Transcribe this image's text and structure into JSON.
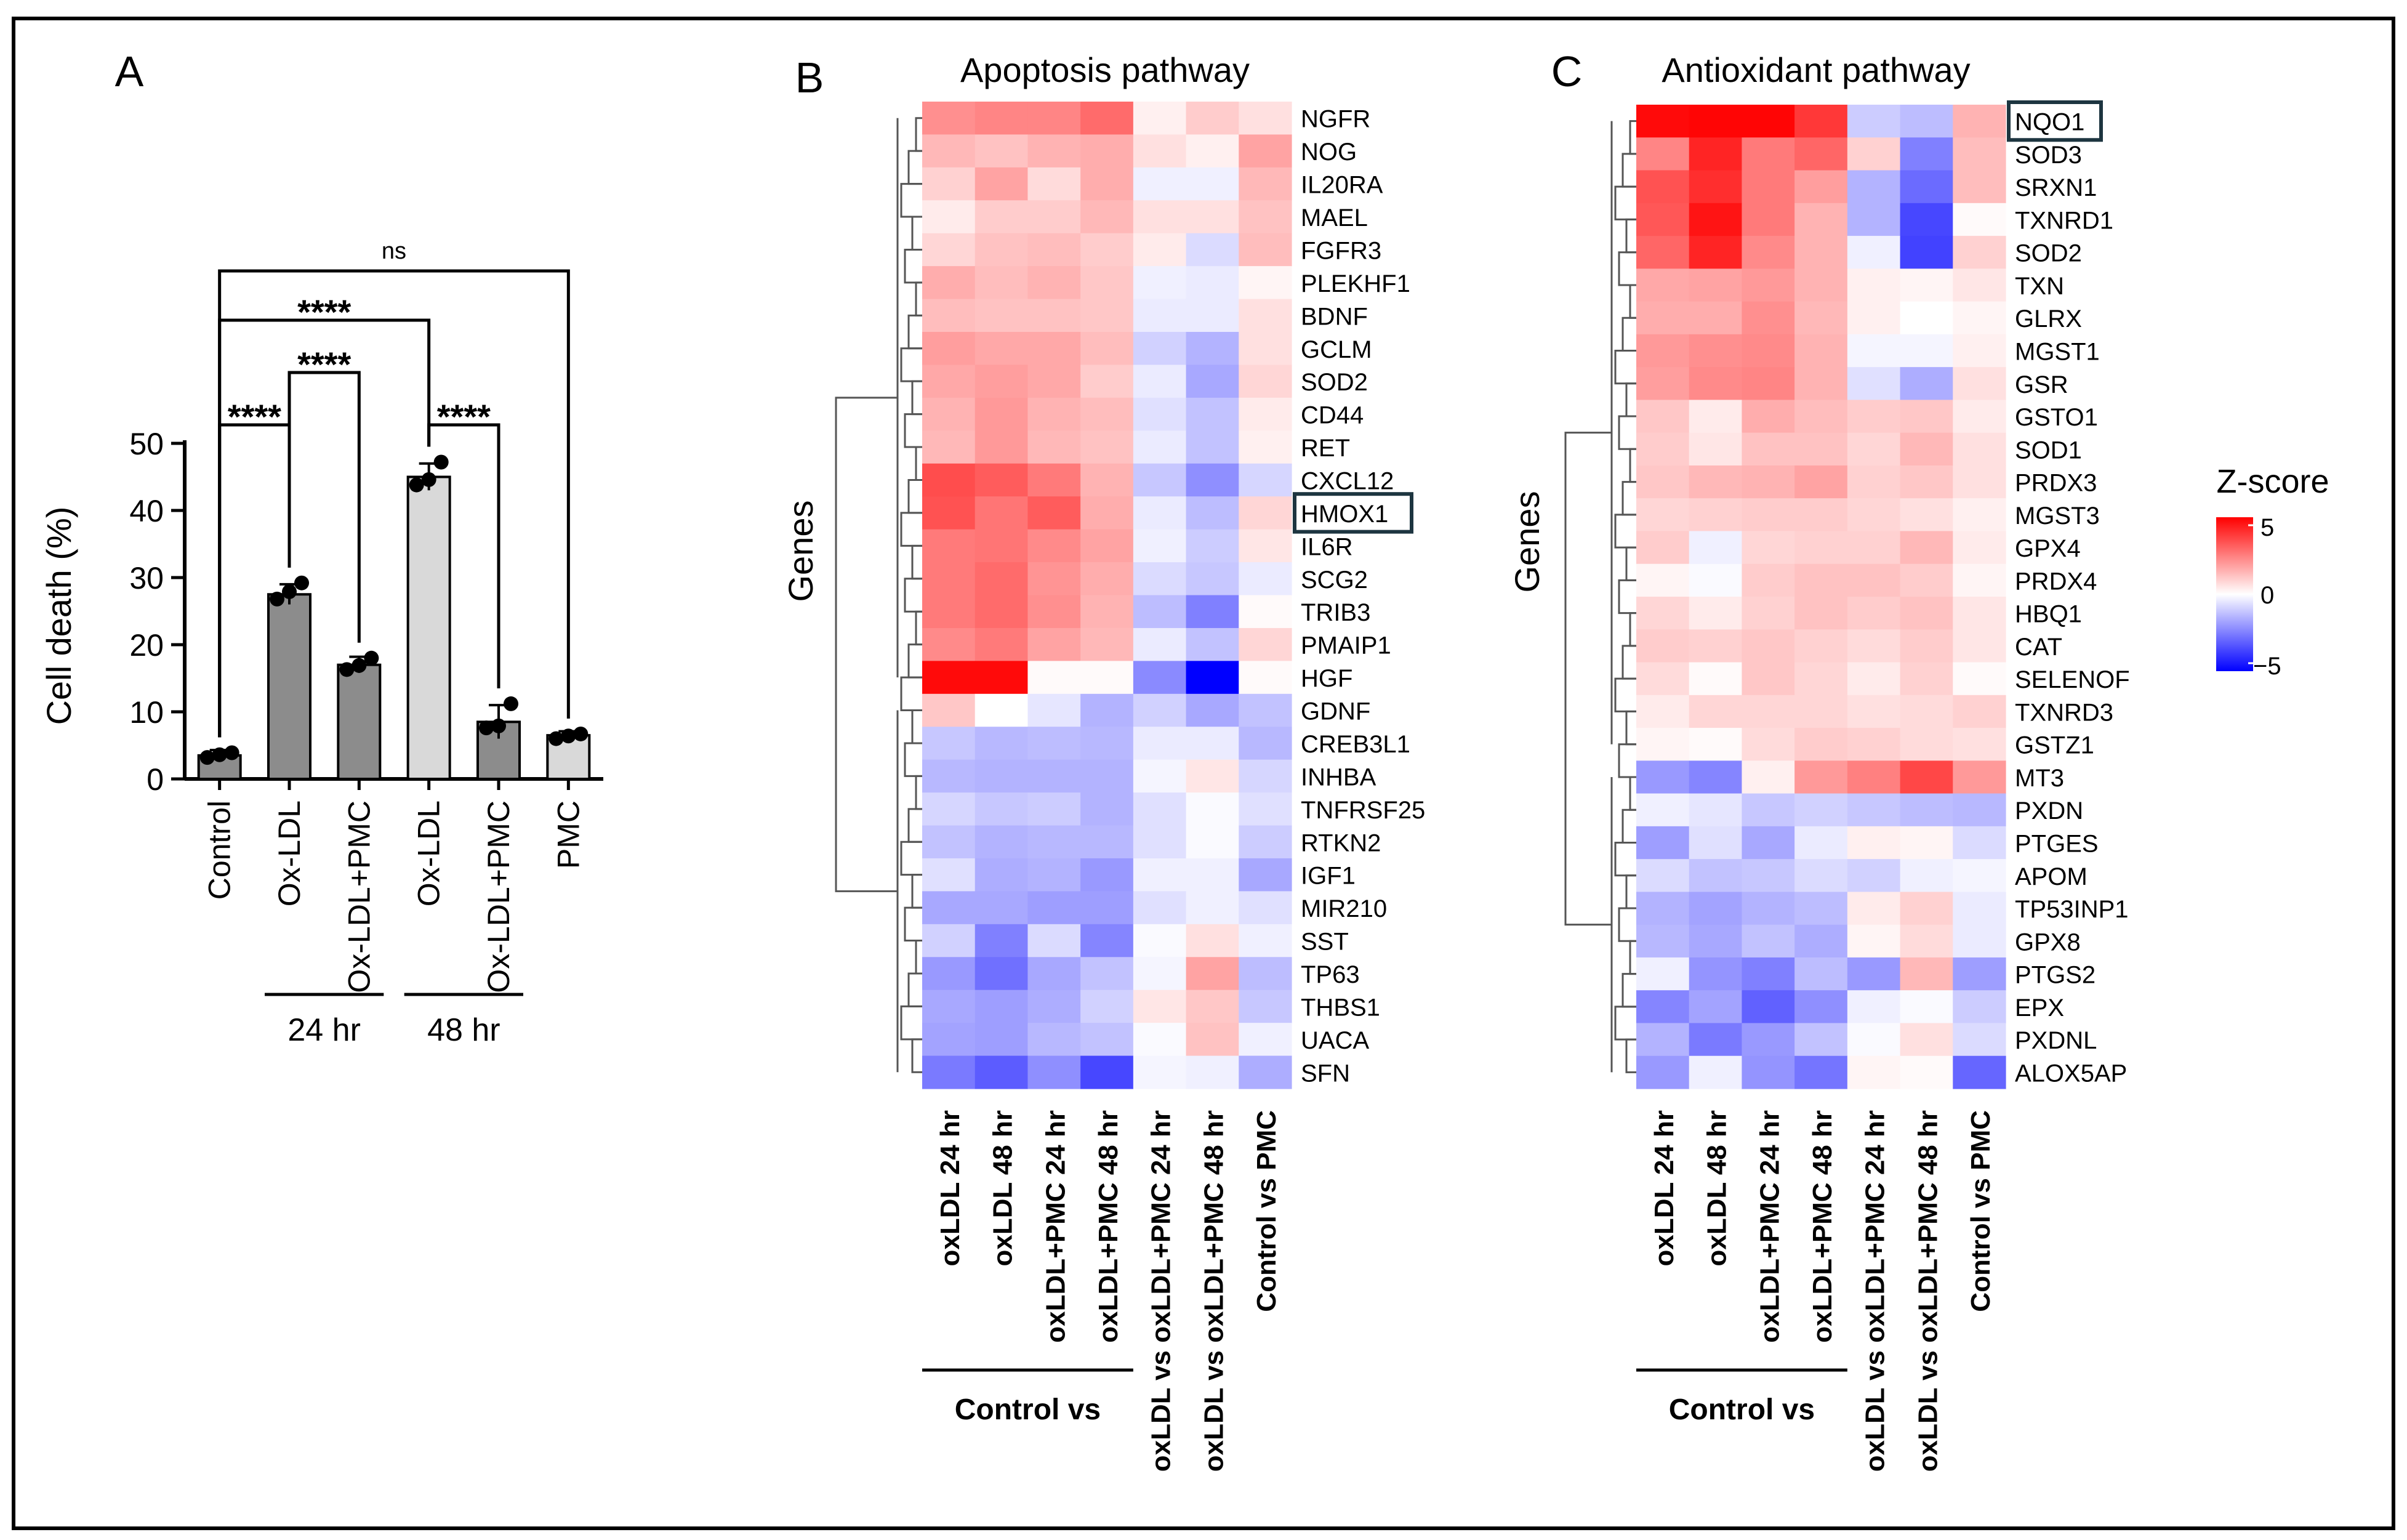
{
  "panel_labels": {
    "a": "A",
    "b": "B",
    "c": "C"
  },
  "colors": {
    "bar_dark": "#8c8c8c",
    "bar_light": "#d9d9d9",
    "heat_high": "#ff0000",
    "heat_mid": "#ffffff",
    "heat_low": "#0000ff"
  },
  "chart_data": [
    {
      "type": "bar",
      "title": "",
      "ylabel": "Cell death (%)",
      "xlabel": "",
      "ylim": [
        0,
        50
      ],
      "yticks": [
        "0",
        "10",
        "20",
        "30",
        "40",
        "50"
      ],
      "categories": [
        "Control",
        "Ox-LDL",
        "Ox-LDL+PMC",
        "Ox-LDL",
        "Ox-LDL+PMC",
        "PMC"
      ],
      "values": [
        3.5,
        27.5,
        17,
        45,
        8.5,
        6.5
      ],
      "errors": [
        0.8,
        1.5,
        1.2,
        2.0,
        2.5,
        0.6
      ],
      "points": [
        [
          3.2,
          3.6,
          3.9
        ],
        [
          26.8,
          27.9,
          29.2
        ],
        [
          16.3,
          16.9,
          18.0
        ],
        [
          43.8,
          44.6,
          47.2
        ],
        [
          7.6,
          7.9,
          11.2
        ],
        [
          6.0,
          6.4,
          6.7
        ]
      ],
      "bar_shades": [
        "dark",
        "dark",
        "dark",
        "light",
        "dark",
        "light"
      ],
      "groups": [
        {
          "label": "24 hr",
          "from": 1,
          "to": 2
        },
        {
          "label": "48 hr",
          "from": 3,
          "to": 4
        }
      ],
      "significance": [
        {
          "from": 0,
          "to": 5,
          "label": "ns"
        },
        {
          "from": 0,
          "to": 3,
          "label": "****"
        },
        {
          "from": 1,
          "to": 2,
          "label": "****"
        },
        {
          "from": 0,
          "to": 1,
          "label": "****"
        },
        {
          "from": 3,
          "to": 4,
          "label": "****"
        }
      ]
    },
    {
      "type": "heatmap",
      "title": "Apoptosis pathway",
      "ylabel": "Genes",
      "columns": [
        "oxLDL 24 hr",
        "oxLDL 48 hr",
        "oxLDL+PMC 24 hr",
        "oxLDL+PMC 48 hr",
        "oxLDL vs oxLDL+PMC 24 hr",
        "oxLDL vs oxLDL+PMC 48 hr",
        "Control vs PMC"
      ],
      "column_group": {
        "label": "Control vs",
        "from": 0,
        "to": 3
      },
      "rows": [
        "NGFR",
        "NOG",
        "IL20RA",
        "MAEL",
        "FGFR3",
        "PLEKHF1",
        "BDNF",
        "GCLM",
        "SOD2",
        "CD44",
        "RET",
        "CXCL12",
        "HMOX1",
        "IL6R",
        "SCG2",
        "TRIB3",
        "PMAIP1",
        "HGF",
        "GDNF",
        "CREB3L1",
        "INHBA",
        "TNFRSF25",
        "RTKN2",
        "IGF1",
        "MIR210",
        "SST",
        "TP63",
        "THBS1",
        "UACA",
        "SFN"
      ],
      "highlight_row": "HMOX1",
      "values": [
        [
          2.2,
          2.4,
          2.4,
          2.9,
          0.3,
          1.0,
          0.6
        ],
        [
          1.4,
          1.2,
          1.5,
          1.6,
          0.6,
          0.3,
          1.8
        ],
        [
          0.9,
          1.8,
          0.7,
          1.6,
          -0.3,
          -0.3,
          1.4
        ],
        [
          0.4,
          1.0,
          1.0,
          1.4,
          0.6,
          0.6,
          1.2
        ],
        [
          0.8,
          1.2,
          1.3,
          1.0,
          0.4,
          -0.7,
          1.3
        ],
        [
          1.6,
          1.3,
          1.5,
          1.1,
          -0.3,
          -0.4,
          0.2
        ],
        [
          1.3,
          1.2,
          1.2,
          1.1,
          -0.4,
          -0.4,
          0.6
        ],
        [
          1.9,
          1.7,
          1.7,
          1.3,
          -0.9,
          -1.5,
          0.6
        ],
        [
          1.7,
          1.9,
          1.7,
          1.0,
          -0.4,
          -1.7,
          0.8
        ],
        [
          1.5,
          2.0,
          1.5,
          1.3,
          -0.6,
          -1.2,
          0.4
        ],
        [
          1.4,
          2.0,
          1.4,
          1.2,
          -0.4,
          -1.2,
          0.3
        ],
        [
          3.5,
          3.2,
          2.6,
          1.5,
          -1.1,
          -2.2,
          -0.8
        ],
        [
          3.4,
          2.7,
          3.2,
          1.6,
          -0.4,
          -1.3,
          0.8
        ],
        [
          2.6,
          2.7,
          2.3,
          1.8,
          -0.3,
          -1.0,
          0.5
        ],
        [
          2.6,
          2.9,
          2.1,
          1.6,
          -0.7,
          -1.1,
          -0.4
        ],
        [
          2.6,
          2.9,
          2.2,
          1.5,
          -1.3,
          -2.5,
          0.1
        ],
        [
          2.3,
          2.6,
          1.8,
          1.4,
          -0.4,
          -1.2,
          0.8
        ],
        [
          4.8,
          4.8,
          0.1,
          0.1,
          -2.3,
          -5.0,
          0.1
        ],
        [
          1.1,
          0.0,
          -0.5,
          -1.5,
          -0.9,
          -1.7,
          -1.2
        ],
        [
          -1.1,
          -1.4,
          -1.3,
          -1.4,
          -0.4,
          -0.4,
          -1.4
        ],
        [
          -1.4,
          -1.5,
          -1.5,
          -1.5,
          -0.2,
          0.5,
          -0.8
        ],
        [
          -0.8,
          -1.1,
          -1.0,
          -1.5,
          -0.6,
          -0.1,
          -0.6
        ],
        [
          -1.2,
          -1.5,
          -1.4,
          -1.4,
          -0.6,
          -0.1,
          -1.0
        ],
        [
          -0.6,
          -1.6,
          -1.5,
          -2.0,
          -0.3,
          -0.3,
          -1.7
        ],
        [
          -1.7,
          -1.7,
          -1.9,
          -1.9,
          -0.6,
          -0.3,
          -0.6
        ],
        [
          -0.9,
          -2.5,
          -0.7,
          -2.4,
          -0.1,
          0.6,
          -0.3
        ],
        [
          -2.0,
          -2.8,
          -1.7,
          -1.2,
          -0.2,
          1.8,
          -1.3
        ],
        [
          -1.7,
          -1.9,
          -1.6,
          -0.9,
          0.5,
          1.1,
          -1.1
        ],
        [
          -1.8,
          -1.9,
          -1.4,
          -1.2,
          -0.1,
          1.2,
          -0.3
        ],
        [
          -2.6,
          -3.2,
          -2.2,
          -3.6,
          -0.2,
          -0.3,
          -1.6
        ]
      ]
    },
    {
      "type": "heatmap",
      "title": "Antioxidant pathway",
      "ylabel": "Genes",
      "columns": [
        "oxLDL 24 hr",
        "oxLDL 48 hr",
        "oxLDL+PMC 24 hr",
        "oxLDL+PMC 48 hr",
        "oxLDL vs oxLDL+PMC 24 hr",
        "oxLDL vs oxLDL+PMC 48 hr",
        "Control vs PMC"
      ],
      "column_group": {
        "label": "Control vs",
        "from": 0,
        "to": 3
      },
      "rows": [
        "NQO1",
        "SOD3",
        "SRXN1",
        "TXNRD1",
        "SOD2",
        "TXN",
        "GLRX",
        "MGST1",
        "GSR",
        "GSTO1",
        "SOD1",
        "PRDX3",
        "MGST3",
        "GPX4",
        "PRDX4",
        "HBQ1",
        "CAT",
        "SELENOF",
        "TXNRD3",
        "GSTZ1",
        "MT3",
        "PXDN",
        "PTGES",
        "APOM",
        "TP53INP1",
        "GPX8",
        "PTGS2",
        "EPX",
        "PXDNL",
        "ALOX5AP"
      ],
      "highlight_row": "NQO1",
      "values": [
        [
          4.8,
          4.9,
          4.9,
          3.9,
          -1.0,
          -1.3,
          1.5
        ],
        [
          2.4,
          4.3,
          2.6,
          3.0,
          0.9,
          -2.5,
          1.3
        ],
        [
          3.4,
          4.1,
          2.6,
          1.9,
          -1.5,
          -2.9,
          1.3
        ],
        [
          3.3,
          4.6,
          2.6,
          1.5,
          -1.5,
          -3.6,
          0.1
        ],
        [
          3.0,
          4.3,
          2.3,
          1.5,
          -0.3,
          -3.7,
          0.9
        ],
        [
          1.7,
          1.8,
          2.0,
          1.5,
          0.3,
          0.2,
          0.5
        ],
        [
          1.6,
          1.6,
          2.2,
          1.4,
          0.3,
          0.0,
          0.2
        ],
        [
          2.0,
          2.2,
          2.3,
          1.5,
          -0.2,
          -0.2,
          0.3
        ],
        [
          1.9,
          2.3,
          2.4,
          1.5,
          -0.6,
          -1.6,
          0.6
        ],
        [
          1.1,
          0.4,
          1.6,
          1.3,
          1.0,
          1.1,
          0.4
        ],
        [
          1.0,
          0.5,
          1.2,
          1.2,
          0.8,
          1.4,
          0.6
        ],
        [
          1.1,
          1.4,
          1.5,
          1.8,
          0.9,
          1.1,
          0.6
        ],
        [
          0.8,
          0.9,
          1.0,
          1.0,
          0.8,
          0.6,
          0.3
        ],
        [
          1.0,
          -0.3,
          0.8,
          0.9,
          0.9,
          1.4,
          0.4
        ],
        [
          0.2,
          -0.1,
          1.0,
          1.2,
          1.2,
          1.0,
          0.2
        ],
        [
          0.8,
          0.4,
          0.9,
          1.2,
          1.0,
          1.2,
          0.5
        ],
        [
          1.0,
          0.9,
          1.1,
          0.9,
          0.7,
          1.0,
          0.5
        ],
        [
          0.7,
          0.1,
          1.1,
          0.8,
          0.4,
          0.9,
          0.1
        ],
        [
          0.4,
          0.8,
          0.8,
          0.8,
          0.6,
          0.7,
          0.9
        ],
        [
          0.2,
          0.1,
          0.7,
          1.0,
          0.9,
          0.7,
          0.6
        ],
        [
          -2.0,
          -2.4,
          0.3,
          2.0,
          2.5,
          3.6,
          2.0
        ],
        [
          -0.3,
          -0.5,
          -1.1,
          -0.9,
          -1.1,
          -1.3,
          -1.4
        ],
        [
          -1.9,
          -0.6,
          -1.7,
          -0.4,
          0.3,
          0.2,
          -0.7
        ],
        [
          -0.7,
          -1.2,
          -1.1,
          -0.7,
          -0.9,
          -0.3,
          -0.2
        ],
        [
          -1.5,
          -1.8,
          -1.5,
          -1.3,
          0.4,
          0.9,
          -0.4
        ],
        [
          -1.4,
          -1.7,
          -1.2,
          -1.6,
          0.2,
          0.7,
          -0.4
        ],
        [
          -0.3,
          -2.1,
          -2.5,
          -1.3,
          -2.0,
          1.4,
          -1.9
        ],
        [
          -2.4,
          -1.8,
          -3.1,
          -2.2,
          -0.3,
          -0.1,
          -1.0
        ],
        [
          -1.5,
          -2.6,
          -2.0,
          -1.2,
          -0.1,
          0.6,
          -0.7
        ],
        [
          -2.0,
          -0.3,
          -2.1,
          -2.7,
          0.2,
          0.1,
          -3.0
        ]
      ]
    }
  ],
  "legend": {
    "title": "Z-score",
    "ticks": [
      "5",
      "0",
      "−5"
    ],
    "min": -5,
    "max": 5
  }
}
